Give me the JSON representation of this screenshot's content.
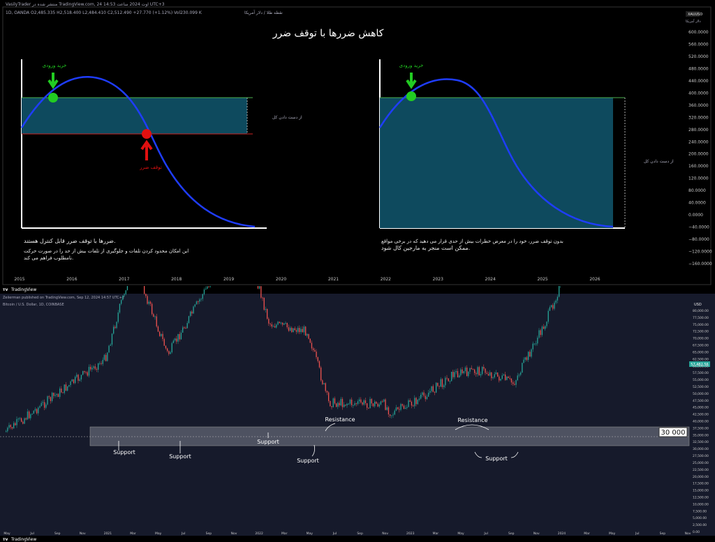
{
  "top_panel": {
    "header_left": "VasilyTrader منتشر شده در TradingView.com, 24 اوت 2024 ساعت 14:53 UTC+3",
    "symbol_line": "1D, OANDA O2,485.335 H2,518.400 L2,484.410 C2,512.490 +27.770 (+1.12%) Vol230.099 K",
    "instrument": "نقطه طلا / دلار آمریکا",
    "title": "کاهش ضررها با توقف ضرر",
    "currency_tag": "XAUUSD",
    "currency_sub": "دلار آمریکا",
    "left_diagram": {
      "entry_label": "خرید ورودی",
      "stop_label": "توقف ضرر",
      "loss_label": "از دست دادن کل",
      "caption_line1": "ضررها با توقف ضرر قابل کنترل هستند.",
      "caption_line2": "این امکان محدود کردن تلفات و جلوگیری از تلفات بیش از حد را در صورت حرکت",
      "caption_line3": "نامطلوب فراهم می کند."
    },
    "right_diagram": {
      "entry_label": "خرید ورودی",
      "loss_label": "از دست دادن کل",
      "caption_line1": "بدون توقف ضرر، خود را در معرض خطرات بیش از حدی قرار می دهید که در برخی مواقع",
      "caption_line2": "ممکن است منجر به مارجین کال شود."
    },
    "colors": {
      "curve": "#1f3dff",
      "fill": "#0e4a5e",
      "entry_dot": "#22cc22",
      "stop_dot": "#e01010",
      "entry_line": "#4caf50",
      "stop_line": "#cc2222"
    }
  },
  "bottom_panel": {
    "brand": "TradingView",
    "published_line": "Zeiierman published on TradingView.com, Sep 12, 2024 14:57 UTC+2",
    "symbol_line": "Bitcoin / U.S. Dollar, 1D, COINBASE",
    "currency_tag": "USD",
    "price_badge": "57,482.56",
    "zone_label": "30 000",
    "resistance_label_1": "Resistance",
    "resistance_label_2": "Resistance",
    "support_labels": [
      "Support",
      "Support",
      "Support",
      "Support",
      "Support"
    ],
    "footer_brand": "TradingView",
    "colors": {
      "up": "#26a69a",
      "down": "#ef5350",
      "zone": "#c8cad2"
    }
  },
  "chart_data": [
    {
      "type": "line",
      "title": "کاهش ضررها با توقف ضرر",
      "x_ticks": [
        "2015",
        "2016",
        "2017",
        "2018",
        "2019",
        "2020",
        "2021",
        "2022",
        "2023",
        "2024",
        "2025",
        "2026"
      ],
      "y_ticks": [
        "600.0000",
        "560.0000",
        "520.0000",
        "480.0000",
        "440.0000",
        "400.0000",
        "360.0000",
        "320.0000",
        "280.0000",
        "240.0000",
        "200.0000",
        "160.0000",
        "120.0000",
        "80.0000",
        "40.0000",
        "0.0000",
        "−40.0000",
        "−80.0000",
        "−120.0000",
        "−160.0000"
      ],
      "ylim": [
        -160,
        600
      ]
    },
    {
      "type": "line",
      "title": "",
      "series": [
        {
          "name": "",
          "x": [
            "2020-10",
            "2021-01",
            "2021-04",
            "2021-07",
            "2021-10",
            "2021-11",
            "2022-01",
            "2022-04",
            "2022-06",
            "2022-09",
            "2022-11",
            "2023-01",
            "2023-04",
            "2023-07",
            "2023-09",
            "2023-12",
            "2024-03",
            "2024-05",
            "2024-07",
            "2024-09"
          ],
          "values": [
            11000,
            33000,
            58000,
            34000,
            62000,
            67000,
            42000,
            40000,
            20000,
            19500,
            16500,
            21000,
            29000,
            30000,
            26000,
            42000,
            71000,
            62000,
            67000,
            57000
          ]
        }
      ],
      "x_ticks": [
        "May",
        "Jul",
        "Sep",
        "Nov",
        "2021",
        "Mar",
        "May",
        "Jul",
        "Sep",
        "Nov",
        "2022",
        "Mar",
        "May",
        "Jul",
        "Sep",
        "Nov",
        "2023",
        "Mar",
        "May",
        "Jul",
        "Sep",
        "Nov",
        "2024",
        "Mar",
        "May",
        "Jul",
        "Sep",
        "Nov"
      ],
      "y_ticks": [
        "80,000.00",
        "77,500.00",
        "75,000.00",
        "72,500.00",
        "70,000.00",
        "67,500.00",
        "65,000.00",
        "62,500.00",
        "60,000.00",
        "57,500.00",
        "55,000.00",
        "52,500.00",
        "50,000.00",
        "47,500.00",
        "45,000.00",
        "42,500.00",
        "40,000.00",
        "37,500.00",
        "35,000.00",
        "32,500.00",
        "30,000.00",
        "27,500.00",
        "25,000.00",
        "22,500.00",
        "20,000.00",
        "17,500.00",
        "15,000.00",
        "12,500.00",
        "10,000.00",
        "7,500.00",
        "5,000.00",
        "2,500.00",
        "0.00"
      ],
      "ylim": [
        0,
        80000
      ],
      "zone": [
        27000,
        33000
      ]
    }
  ]
}
